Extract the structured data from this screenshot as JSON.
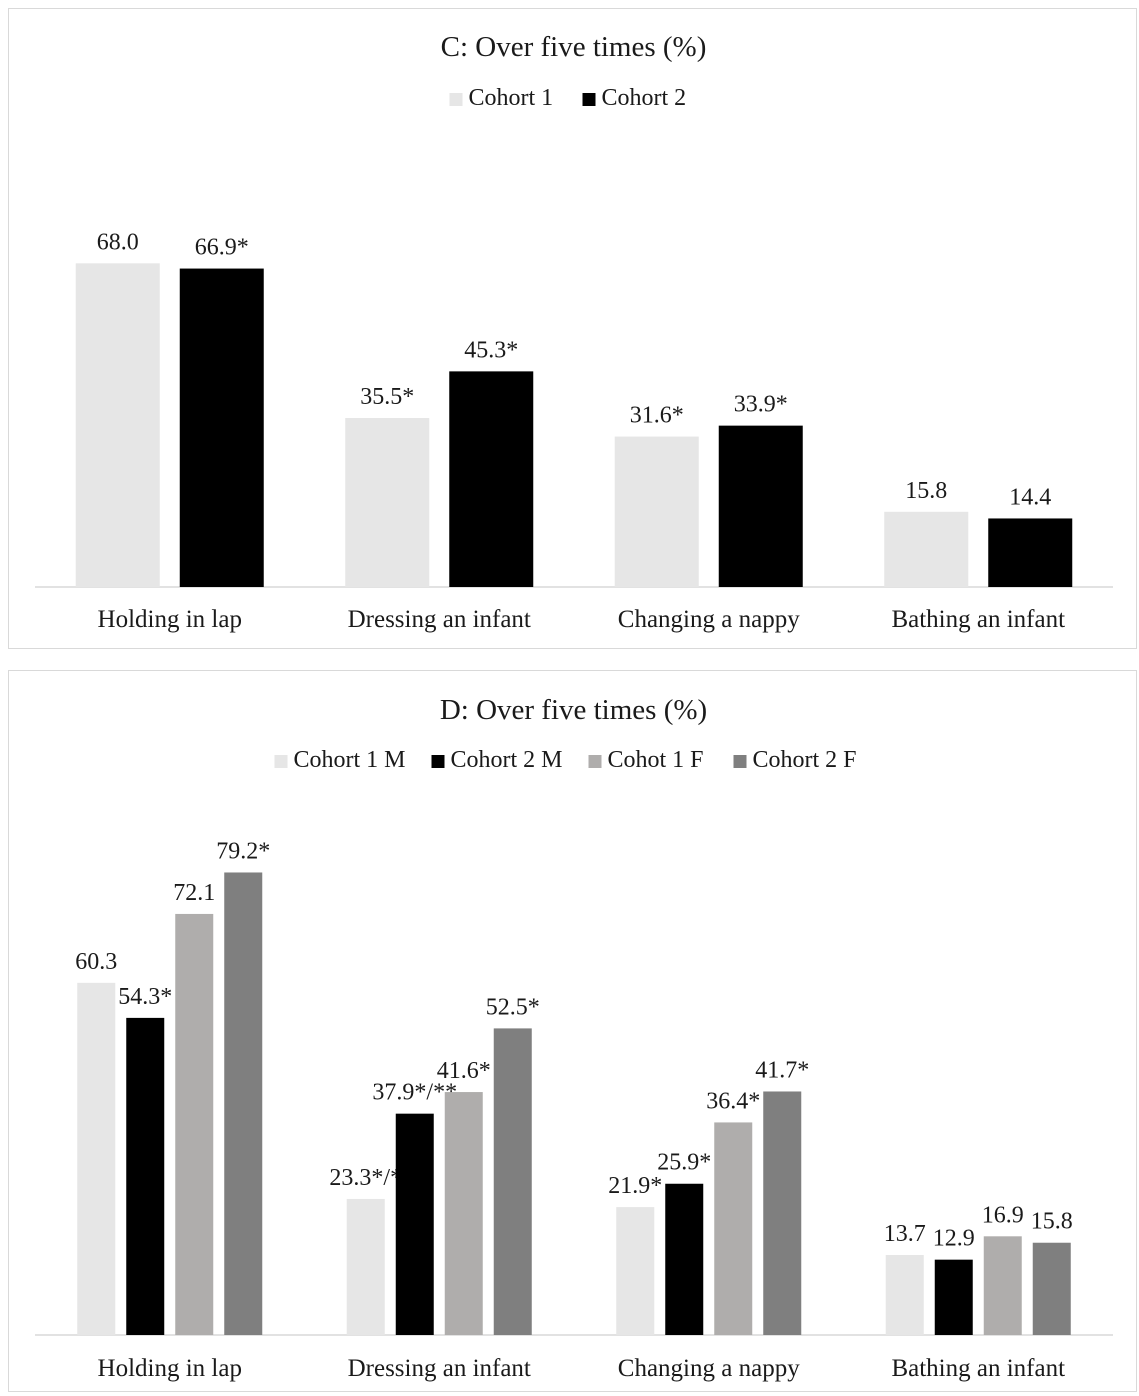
{
  "chart_data": [
    {
      "type": "bar",
      "title": "C: Over five times (%)",
      "categories": [
        "Holding in lap",
        "Dressing an infant",
        "Changing a nappy",
        "Bathing an infant"
      ],
      "series": [
        {
          "name": "Cohort 1",
          "color": "#e6e6e6",
          "values": [
            68.0,
            35.5,
            31.6,
            15.8
          ],
          "labels": [
            "68.0",
            "35.5*",
            "31.6*",
            "15.8"
          ]
        },
        {
          "name": "Cohort 2",
          "color": "#000000",
          "values": [
            66.9,
            45.3,
            33.9,
            14.4
          ],
          "labels": [
            "66.9*",
            "45.3*",
            "33.9*",
            "14.4"
          ]
        }
      ],
      "ylim": [
        0,
        70
      ],
      "grid": false,
      "legend_position": "top"
    },
    {
      "type": "bar",
      "title": "D: Over five times (%)",
      "categories": [
        "Holding in lap",
        "Dressing an infant",
        "Changing a nappy",
        "Bathing an infant"
      ],
      "series": [
        {
          "name": "Cohort 1 M",
          "color": "#e6e6e6",
          "values": [
            60.3,
            23.3,
            21.9,
            13.7
          ],
          "labels": [
            "60.3",
            "23.3*/*",
            "21.9*",
            "13.7"
          ]
        },
        {
          "name": "Cohort 2 M",
          "color": "#000000",
          "values": [
            54.3,
            37.9,
            25.9,
            12.9
          ],
          "labels": [
            "54.3*",
            "37.9*/**",
            "25.9*",
            "12.9"
          ]
        },
        {
          "name": "Cohot 1 F",
          "color": "#afadac",
          "values": [
            72.1,
            41.6,
            36.4,
            16.9
          ],
          "labels": [
            "72.1",
            "41.6*",
            "36.4*",
            "16.9"
          ]
        },
        {
          "name": "Cohort 2 F",
          "color": "#7f7f7f",
          "values": [
            79.2,
            52.5,
            41.7,
            15.8
          ],
          "labels": [
            "79.2*",
            "52.5*",
            "41.7*",
            "15.8"
          ]
        }
      ],
      "ylim": [
        0,
        80
      ],
      "grid": false,
      "legend_position": "top"
    }
  ]
}
